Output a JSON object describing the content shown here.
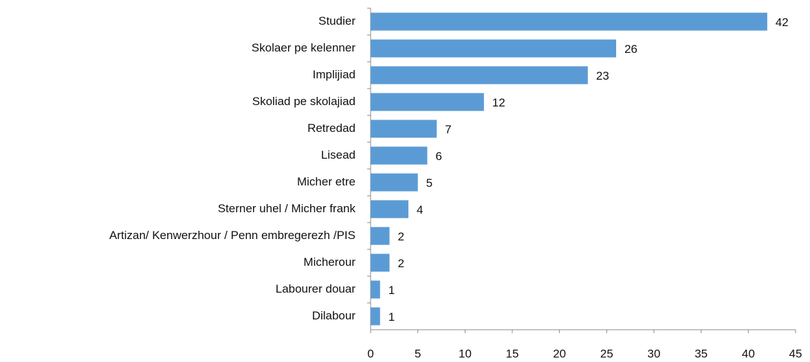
{
  "chart_data": {
    "type": "bar",
    "orientation": "horizontal",
    "categories": [
      "Studier",
      "Skolaer pe kelenner",
      "Implijiad",
      "Skoliad pe skolajiad",
      "Retredad",
      "Lisead",
      "Micher etre",
      "Sterner uhel / Micher frank",
      "Artizan/ Kenwerzhour / Penn embregerezh /PIS",
      "Micherour",
      "Labourer douar",
      "Dilabour"
    ],
    "values": [
      42,
      26,
      23,
      12,
      7,
      6,
      5,
      4,
      2,
      2,
      1,
      1
    ],
    "color": "#5b9bd5",
    "xlim": [
      0,
      45
    ],
    "xticks": [
      0,
      5,
      10,
      15,
      20,
      25,
      30,
      35,
      40,
      45
    ],
    "grid": false
  }
}
